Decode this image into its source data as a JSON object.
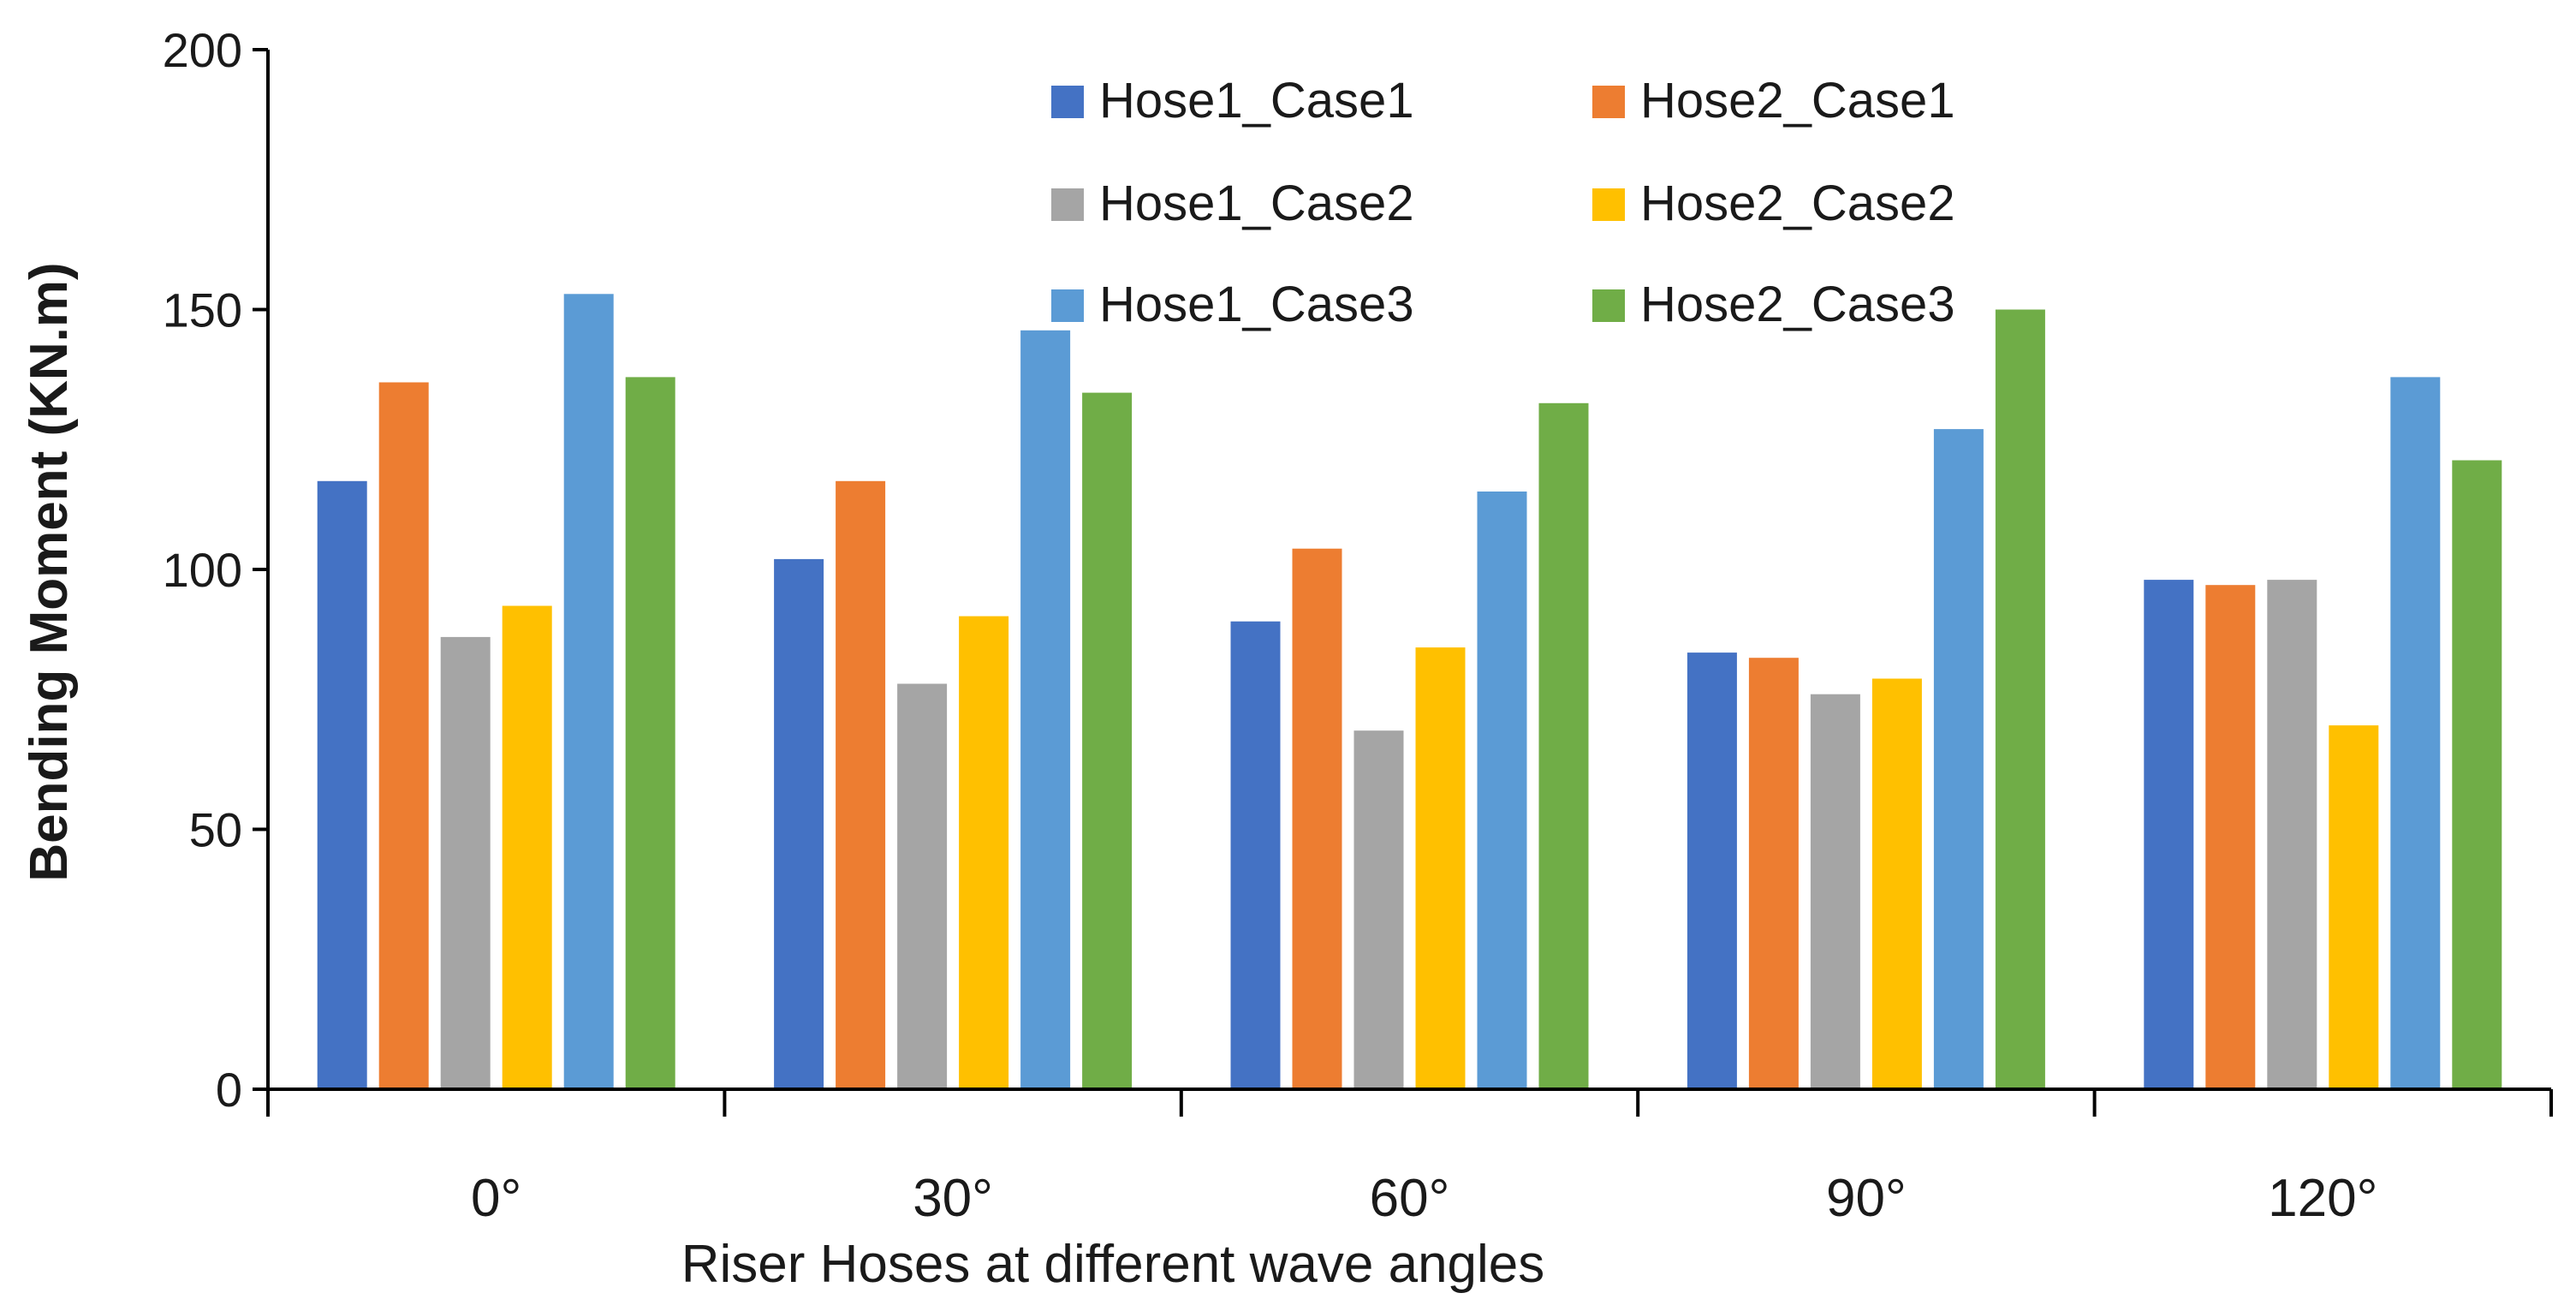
{
  "chart_data": {
    "type": "bar",
    "title": "",
    "xlabel": "Riser Hoses at different wave angles",
    "ylabel": "Bending Moment (KN.m)",
    "ylim": [
      0,
      200
    ],
    "yticks": [
      0,
      50,
      100,
      150,
      200
    ],
    "grid": false,
    "legend_position": "top-center",
    "categories": [
      "0°",
      "30°",
      "60°",
      "90°",
      "120°"
    ],
    "series": [
      {
        "name": "Hose1_Case1",
        "color": "#4472C4",
        "values": [
          117,
          102,
          90,
          84,
          98
        ]
      },
      {
        "name": "Hose2_Case1",
        "color": "#ED7D31",
        "values": [
          136,
          117,
          104,
          83,
          97
        ]
      },
      {
        "name": "Hose1_Case2",
        "color": "#A5A5A5",
        "values": [
          87,
          78,
          69,
          76,
          98
        ]
      },
      {
        "name": "Hose2_Case2",
        "color": "#FFC000",
        "values": [
          93,
          91,
          85,
          79,
          70
        ]
      },
      {
        "name": "Hose1_Case3",
        "color": "#5B9BD5",
        "values": [
          153,
          146,
          115,
          127,
          137
        ]
      },
      {
        "name": "Hose2_Case3",
        "color": "#70AD47",
        "values": [
          137,
          134,
          132,
          150,
          121
        ]
      }
    ]
  }
}
